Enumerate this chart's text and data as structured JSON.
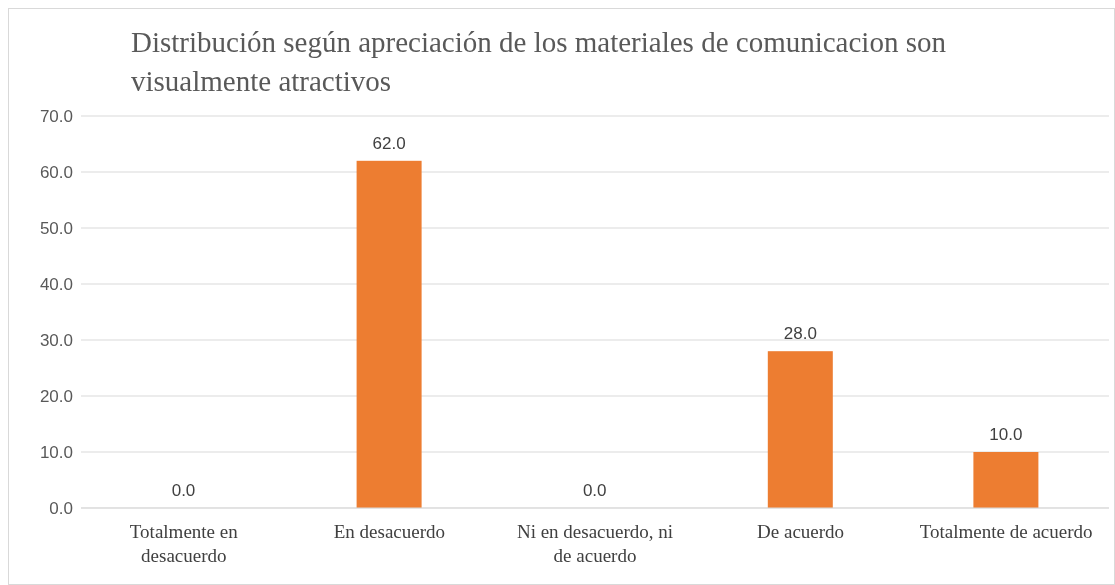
{
  "chart_data": {
    "type": "bar",
    "title": "Distribución según apreciación de los materiales de comunicacion son visualmente atractivos",
    "categories": [
      "Totalmente en desacuerdo",
      "En desacuerdo",
      "Ni en desacuerdo, ni de acuerdo",
      "De acuerdo",
      "Totalmente de acuerdo"
    ],
    "values": [
      0,
      62,
      0,
      28,
      10
    ],
    "color": "#ed7d31",
    "value_labels": [
      "0.0",
      "62.0",
      "0.0",
      "28.0",
      "10.0"
    ],
    "ylim": [
      0,
      70
    ],
    "yticks": [
      {
        "value": 0,
        "label": "0.0"
      },
      {
        "value": 10,
        "label": "10.0"
      },
      {
        "value": 20,
        "label": "20.0"
      },
      {
        "value": 30,
        "label": "30.0"
      },
      {
        "value": 40,
        "label": "40.0"
      },
      {
        "value": 50,
        "label": "50.0"
      },
      {
        "value": 60,
        "label": "60.0"
      },
      {
        "value": 70,
        "label": "70.0"
      }
    ],
    "grid": "y",
    "legend": false
  }
}
